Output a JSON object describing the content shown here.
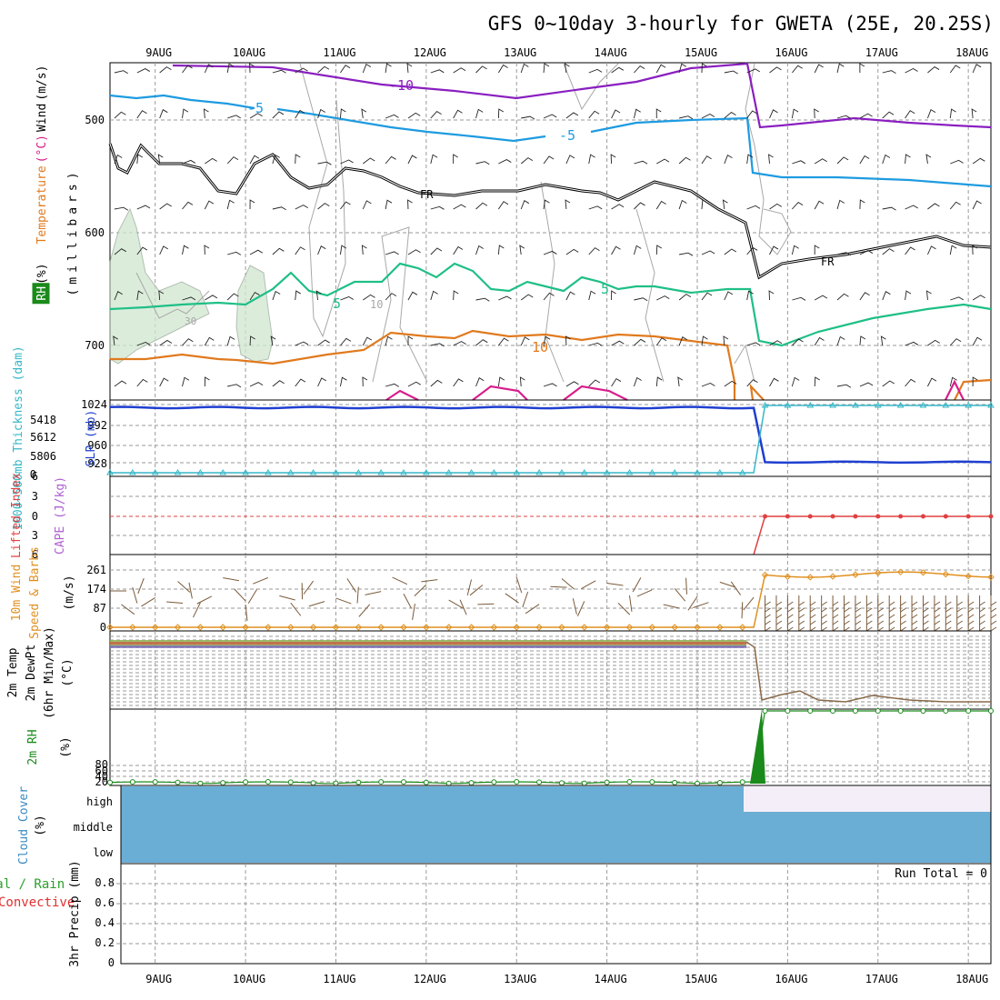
{
  "title": "GFS 0~10day 3-hourly for GWETA (25E, 20.25S)",
  "date_labels": [
    "9AUG",
    "10AUG",
    "11AUG",
    "12AUG",
    "13AUG",
    "14AUG",
    "15AUG",
    "16AUG",
    "17AUG",
    "18AUG"
  ],
  "colors": {
    "temp_m10": "#8a1fc0",
    "temp_m5": "#1e9be0",
    "freezing": "#000000",
    "temp_5": "#1fbf86",
    "temp_10": "#e07a1e",
    "temp_15": "#d81e8c",
    "slp": "#1f3fd0",
    "thickness": "#36b8c8",
    "lifted": "#e04040",
    "cape": "#b060d0",
    "wind10": "#e09020",
    "barbs": "#7a5a3a",
    "rh2m": "#1a8a1a",
    "cloud_fill": "#6aaed6",
    "cloud_clear": "#f4eef8",
    "rain": "#2aa02a",
    "convective": "#e03030"
  },
  "panels": {
    "upper": {
      "ylabel_parts": [
        "Wind",
        "(m/s)",
        "Temperature",
        "(°C)",
        "RH",
        "(%)"
      ],
      "ylabel_mb": "(millibars)",
      "yticks": [
        "500",
        "600",
        "700"
      ],
      "contour_labels": [
        "-10",
        "-5",
        "-5",
        "FR",
        "FR",
        "5",
        "5",
        "10",
        "10",
        "30"
      ]
    },
    "slp": {
      "ylabel_left": "1000~500mb Thickness (dam)",
      "ylabel_right": "SLP (mb)",
      "ticks_left": [
        "5418",
        "5612",
        "5806",
        "0"
      ],
      "ticks_right": [
        "1024",
        "992",
        "960",
        "928"
      ]
    },
    "cape": {
      "ylabel_left": "Lifted Index",
      "ylabel_right": "CAPE (J/kg)",
      "ticks": [
        "6",
        "3",
        "0",
        "3",
        "6"
      ]
    },
    "wind": {
      "ylabel_left": "10m Wind",
      "ylabel_mid": "Speed & Barbs",
      "ylabel_unit": "(m/s)",
      "ticks": [
        "261",
        "174",
        "87",
        "0"
      ]
    },
    "temp2m": {
      "ylabel_lines": [
        "2m Temp",
        "2m DewPt",
        "(6hr Min/Max)"
      ],
      "ylabel_unit": "(°C)"
    },
    "rh": {
      "ylabel": "2m RH",
      "ylabel_unit": "(%)",
      "ticks": [
        "80",
        "60",
        "40",
        "20"
      ]
    },
    "cloud": {
      "ylabel": "Cloud Cover",
      "ylabel_unit": "(%)",
      "levels": [
        "high",
        "middle",
        "low"
      ]
    },
    "precip": {
      "ylabel_left": "Total / Rain",
      "ylabel_left2": "Convective",
      "ylabel_right": "3hr Precip (mm)",
      "ticks": [
        "0.8",
        "0.6",
        "0.4",
        "0.2",
        "0"
      ],
      "run_total": "Run Total = 0"
    }
  },
  "chart_data": {
    "type": "line",
    "title": "GFS 0~10day 3-hourly for GWETA (25E, 20.25S)",
    "x_dates": [
      "9AUG",
      "10AUG",
      "11AUG",
      "12AUG",
      "13AUG",
      "14AUG",
      "15AUG",
      "16AUG",
      "17AUG",
      "18AUG"
    ],
    "x_range_days": [
      8.5,
      18.25
    ],
    "sea_level_pressure_mb": {
      "before_15_6AUG": 1019,
      "after_15_8AUG": 929
    },
    "thickness_dam_before": 0,
    "lifted_index_after": 0,
    "wind10_speed_ms": {
      "before": 0,
      "after_approx": 240,
      "peak_approx": 261
    },
    "rh2m_pct": {
      "before": 20,
      "after": 100
    },
    "cloud_cover": {
      "low_middle": "full",
      "high_until": "15.5AUG"
    },
    "precip_3hr_mm": 0,
    "run_total": "Run Total = 0"
  }
}
